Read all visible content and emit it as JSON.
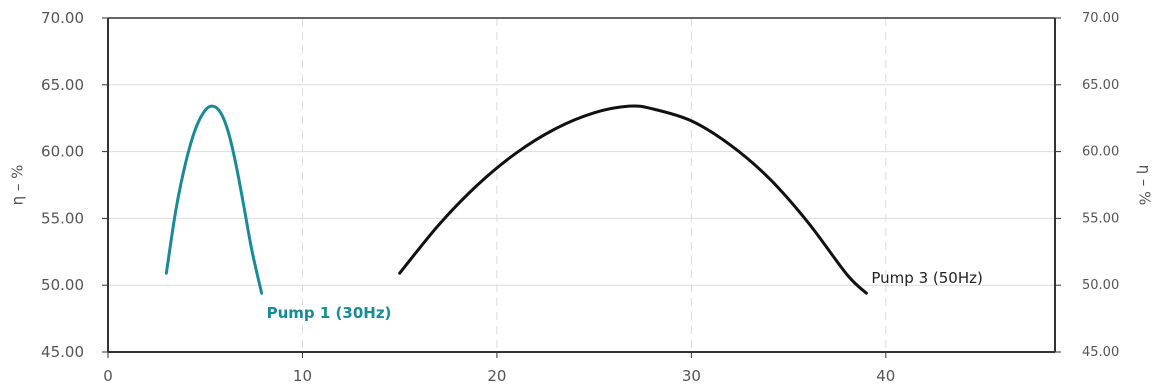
{
  "chart_data": {
    "type": "line",
    "xlim": [
      0,
      48.7
    ],
    "ylim": [
      45,
      70
    ],
    "x_ticks": [
      "0",
      "10",
      "20",
      "30",
      "40"
    ],
    "y_ticks": [
      "45.00",
      "50.00",
      "55.00",
      "60.00",
      "65.00",
      "70.00"
    ],
    "ylabel": "η – %",
    "ylabel_right": "η – %",
    "grid": true,
    "series": [
      {
        "name": "Pump 1 (30Hz)",
        "color": "#1a8a96",
        "x": [
          3.0,
          3.5,
          4.0,
          4.5,
          5.0,
          5.4,
          5.8,
          6.2,
          6.6,
          7.0,
          7.4,
          7.9
        ],
        "y": [
          50.9,
          55.7,
          59.2,
          61.7,
          63.1,
          63.4,
          62.9,
          61.4,
          58.9,
          55.8,
          52.6,
          49.4
        ]
      },
      {
        "name": "Pump 3 (50Hz)",
        "color": "#111111",
        "x": [
          15,
          17,
          19,
          21,
          23,
          25,
          26.8,
          28,
          30,
          32,
          34,
          36,
          38,
          39
        ],
        "y": [
          50.9,
          54.5,
          57.5,
          59.9,
          61.7,
          62.9,
          63.4,
          63.2,
          62.3,
          60.5,
          58.0,
          54.7,
          50.8,
          49.4
        ]
      }
    ]
  }
}
